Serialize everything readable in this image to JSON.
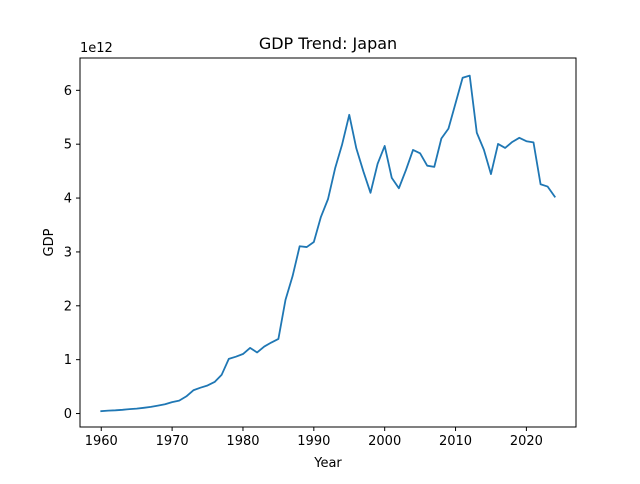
{
  "chart_data": {
    "type": "line",
    "title": "GDP Trend: Japan",
    "xlabel": "Year",
    "ylabel": "GDP",
    "offset_text": "1e12",
    "xlim": [
      1957,
      2027
    ],
    "ylim": [
      -0.25,
      6.6
    ],
    "xticks": [
      1960,
      1970,
      1980,
      1990,
      2000,
      2010,
      2020
    ],
    "yticks": [
      0,
      1,
      2,
      3,
      4,
      5,
      6
    ],
    "grid": false,
    "legend": "none",
    "line_color": "#1f77b4",
    "series": [
      {
        "x": [
          1960,
          1961,
          1962,
          1963,
          1964,
          1965,
          1966,
          1967,
          1968,
          1969,
          1970,
          1971,
          1972,
          1973,
          1974,
          1975,
          1976,
          1977,
          1978,
          1979,
          1980,
          1981,
          1982,
          1983,
          1984,
          1985,
          1986,
          1987,
          1988,
          1989,
          1990,
          1991,
          1992,
          1993,
          1994,
          1995,
          1996,
          1997,
          1998,
          1999,
          2000,
          2001,
          2002,
          2003,
          2004,
          2005,
          2006,
          2007,
          2008,
          2009,
          2010,
          2011,
          2012,
          2013,
          2014,
          2015,
          2016,
          2017,
          2018,
          2019,
          2020,
          2021,
          2022,
          2023,
          2024
        ],
        "values": [
          0.044,
          0.054,
          0.06,
          0.069,
          0.082,
          0.091,
          0.106,
          0.124,
          0.147,
          0.172,
          0.212,
          0.24,
          0.318,
          0.432,
          0.48,
          0.521,
          0.586,
          0.721,
          1.014,
          1.055,
          1.105,
          1.218,
          1.134,
          1.243,
          1.318,
          1.385,
          2.11,
          2.55,
          3.105,
          3.09,
          3.185,
          3.65,
          3.98,
          4.55,
          5.0,
          5.545,
          4.922,
          4.492,
          4.098,
          4.636,
          4.968,
          4.374,
          4.182,
          4.519,
          4.893,
          4.831,
          4.601,
          4.579,
          5.106,
          5.289,
          5.759,
          6.233,
          6.272,
          5.212,
          4.897,
          4.445,
          5.004,
          4.931,
          5.041,
          5.118,
          5.055,
          5.034,
          4.256,
          4.213,
          4.026
        ]
      }
    ]
  }
}
